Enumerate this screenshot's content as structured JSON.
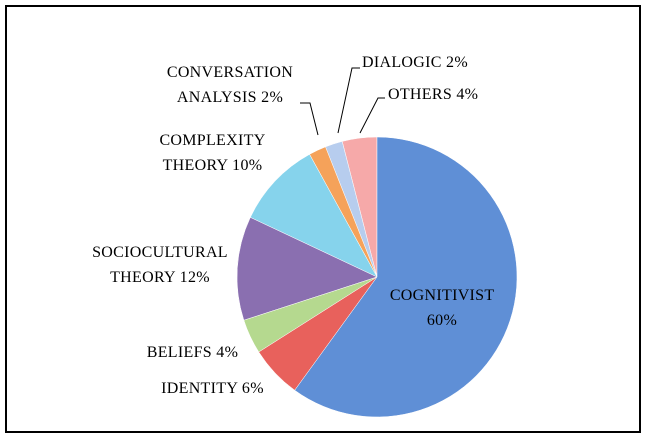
{
  "chart_data": {
    "type": "pie",
    "categories": [
      "COGNITIVIST",
      "IDENTITY",
      "BELIEFS",
      "SOCIOCULTURAL THEORY",
      "COMPLEXITY THEORY",
      "CONVERSATION ANALYSIS",
      "DIALOGIC",
      "OTHERS"
    ],
    "values": [
      60,
      6,
      4,
      12,
      10,
      2,
      2,
      4
    ],
    "value_labels": [
      "60%",
      "6%",
      "4%",
      "12%",
      "10%",
      "2%",
      "2%",
      "4%"
    ],
    "colors": [
      "#5f8fd6",
      "#e8615c",
      "#b5d98f",
      "#8a6fb0",
      "#86d3ec",
      "#f5a25a",
      "#b7cdee",
      "#f6a9a9"
    ]
  }
}
